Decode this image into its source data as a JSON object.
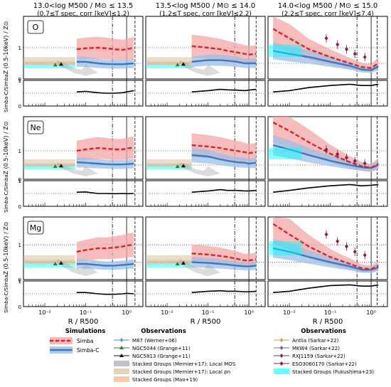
{
  "figure": {
    "columns": [
      {
        "title_line1": "13.0<log M500 / M⊙ ≤ 13.5",
        "title_line2": "(0.7≤T spec, corr [keV]≤1.2)"
      },
      {
        "title_line1": "13.5<log M500 / M⊙ ≤ 14.0",
        "title_line2": "(1.2≤T spec, corr [keV]≤2.2)"
      },
      {
        "title_line1": "14.0<log M500 / M⊙ ≤ 15.0",
        "title_line2": "(2.2≤T spec, corr [keV]≤7.4)"
      }
    ],
    "rows": [
      {
        "element": "O",
        "ylabel": "Z (0.5-10keV) / Z⊙"
      },
      {
        "element": "Ne",
        "ylabel": "Z (0.5-10keV) / Z⊙"
      },
      {
        "element": "Mg",
        "ylabel": "Z (0.5-10keV) / Z⊙"
      }
    ],
    "ratio_ylabel": "Simba-C/Simba",
    "xlabel": "R / R500",
    "x_ticklabels": [
      "10⁻²",
      "10⁻¹",
      "10⁰"
    ],
    "colors": {
      "simba": "#d62728",
      "simba_fill": "#f4a6a6",
      "simbac": "#3b78c2",
      "simbac_fill": "#9dbfe6",
      "mernier_mos": "#9a9a9a",
      "mernier_pn": "#d2b48c",
      "mao": "#f5a878",
      "fukushima": "#00ffff",
      "ratio": "#000000"
    }
  },
  "legend": {
    "simulations_title": "Simulations",
    "simulations": [
      {
        "label": "Simba",
        "color": "#d62728",
        "style": "dashed-band"
      },
      {
        "label": "Simba-C",
        "color": "#3b78c2",
        "style": "solid-band"
      }
    ],
    "obs_title_1": "Observations",
    "observations_1": [
      {
        "label": "M87 (Werner+06)",
        "color": "#4a8fc2",
        "marker": "diamond"
      },
      {
        "label": "NGC5044 (Grange+11)",
        "color": "#2e7d32",
        "marker": "triangle"
      },
      {
        "label": "NGC5813 (Grange+11)",
        "color": "#111111",
        "marker": "triangle"
      },
      {
        "label": "Stacked Groups (Mernier+17): Local MOS",
        "color": "#9a9a9a",
        "marker": "band"
      },
      {
        "label": "Stacked Groups (Mernier+17): Local pn",
        "color": "#d2b48c",
        "marker": "band"
      },
      {
        "label": "Stacked Groups (Mao+19)",
        "color": "#f5a878",
        "marker": "band"
      }
    ],
    "obs_title_2": "Observations",
    "observations_2": [
      {
        "label": "Antlia (Sarkar+22)",
        "color": "#c8a070",
        "marker": "diamond"
      },
      {
        "label": "MKW4 (Sarkar+22)",
        "color": "#7b5ea7",
        "marker": "diamond"
      },
      {
        "label": "RXJ1159 (Sarkar+22)",
        "color": "#6b3a3a",
        "marker": "diamond"
      },
      {
        "label": "ESO3060170 (Sarkar+22)",
        "color": "#8b1a4a",
        "marker": "diamond"
      },
      {
        "label": "Stacked Groups (Fukushima+23)",
        "color": "#00ffff",
        "marker": "band"
      }
    ]
  },
  "chart_data": [
    {
      "panel": "O, 13.0-13.5",
      "type": "line",
      "x": [
        0.06,
        0.1,
        0.2,
        0.3,
        0.5,
        0.8,
        1.0,
        1.5
      ],
      "series": [
        {
          "name": "Simba",
          "values": [
            0.95,
            0.98,
            1.0,
            0.98,
            0.95,
            0.93,
            0.95,
            1.0
          ]
        },
        {
          "name": "Simba-C",
          "values": [
            0.55,
            0.55,
            0.5,
            0.48,
            0.47,
            0.47,
            0.48,
            0.5
          ]
        }
      ],
      "ratio": [
        0.55,
        0.57,
        0.52,
        0.5,
        0.5,
        0.52,
        0.55,
        0.6
      ]
    },
    {
      "panel": "O, 13.5-14.0",
      "type": "line",
      "x": [
        0.04,
        0.1,
        0.2,
        0.3,
        0.5,
        0.8,
        1.0,
        1.5
      ],
      "series": [
        {
          "name": "Simba",
          "values": [
            1.05,
            1.0,
            0.95,
            0.9,
            0.85,
            0.8,
            0.78,
            0.8
          ]
        },
        {
          "name": "Simba-C",
          "values": [
            0.55,
            0.6,
            0.6,
            0.58,
            0.55,
            0.5,
            0.5,
            0.5
          ]
        }
      ],
      "ratio": [
        0.55,
        0.6,
        0.65,
        0.63,
        0.62,
        0.6,
        0.62,
        0.65
      ]
    },
    {
      "panel": "O, 14.0-15.0",
      "type": "line",
      "x": [
        0.004,
        0.01,
        0.03,
        0.1,
        0.3,
        0.6,
        1.0,
        1.5
      ],
      "series": [
        {
          "name": "Simba",
          "values": [
            1.6,
            1.3,
            0.95,
            0.7,
            0.5,
            0.38,
            0.35,
            0.5
          ]
        },
        {
          "name": "Simba-C",
          "values": [
            0.9,
            0.8,
            0.7,
            0.55,
            0.42,
            0.3,
            0.28,
            0.4
          ]
        }
      ],
      "ratio": [
        0.55,
        0.6,
        0.72,
        0.8,
        0.85,
        0.8,
        0.8,
        0.85
      ]
    },
    {
      "panel": "Ne, 13.0-13.5",
      "type": "line",
      "x": [
        0.06,
        0.1,
        0.2,
        0.3,
        0.5,
        0.8,
        1.0,
        1.5
      ],
      "series": [
        {
          "name": "Simba",
          "values": [
            1.0,
            1.05,
            1.1,
            1.08,
            1.05,
            1.05,
            1.08,
            1.12
          ]
        },
        {
          "name": "Simba-C",
          "values": [
            0.6,
            0.58,
            0.55,
            0.53,
            0.52,
            0.52,
            0.53,
            0.55
          ]
        }
      ],
      "ratio": [
        0.55,
        0.56,
        0.5,
        0.5,
        0.49,
        0.5,
        0.49,
        0.5
      ]
    },
    {
      "panel": "Ne, 13.5-14.0",
      "type": "line",
      "x": [
        0.04,
        0.1,
        0.2,
        0.3,
        0.5,
        0.8,
        1.0,
        1.5
      ],
      "series": [
        {
          "name": "Simba",
          "values": [
            1.2,
            1.15,
            1.1,
            1.05,
            1.0,
            0.95,
            0.92,
            0.95
          ]
        },
        {
          "name": "Simba-C",
          "values": [
            0.85,
            0.8,
            0.7,
            0.65,
            0.6,
            0.58,
            0.55,
            0.58
          ]
        }
      ],
      "ratio": [
        0.55,
        0.6,
        0.65,
        0.62,
        0.62,
        0.6,
        0.6,
        0.62
      ]
    },
    {
      "panel": "Ne, 14.0-15.0",
      "type": "line",
      "x": [
        0.004,
        0.01,
        0.03,
        0.1,
        0.3,
        0.6,
        1.0,
        1.5
      ],
      "series": [
        {
          "name": "Simba",
          "values": [
            2.0,
            1.7,
            1.3,
            0.9,
            0.6,
            0.45,
            0.4,
            0.55
          ]
        },
        {
          "name": "Simba-C",
          "values": [
            1.2,
            1.05,
            0.85,
            0.65,
            0.5,
            0.42,
            0.4,
            0.5
          ]
        }
      ],
      "ratio": [
        0.55,
        0.62,
        0.72,
        0.8,
        0.85,
        0.8,
        0.82,
        0.85
      ]
    },
    {
      "panel": "Mg, 13.0-13.5",
      "type": "line",
      "x": [
        0.06,
        0.1,
        0.2,
        0.3,
        0.5,
        0.8,
        1.0,
        1.5
      ],
      "series": [
        {
          "name": "Simba",
          "values": [
            0.8,
            0.85,
            0.9,
            0.9,
            0.92,
            0.95,
            0.98,
            1.0
          ]
        },
        {
          "name": "Simba-C",
          "values": [
            0.45,
            0.45,
            0.42,
            0.4,
            0.4,
            0.42,
            0.43,
            0.45
          ]
        }
      ],
      "ratio": [
        0.55,
        0.55,
        0.5,
        0.48,
        0.48,
        0.5,
        0.52,
        0.5
      ]
    },
    {
      "panel": "Mg, 13.5-14.0",
      "type": "line",
      "x": [
        0.04,
        0.1,
        0.2,
        0.3,
        0.5,
        0.8,
        1.0,
        1.5
      ],
      "series": [
        {
          "name": "Simba",
          "values": [
            0.75,
            0.72,
            0.68,
            0.65,
            0.6,
            0.55,
            0.55,
            0.58
          ]
        },
        {
          "name": "Simba-C",
          "values": [
            0.5,
            0.48,
            0.45,
            0.43,
            0.4,
            0.38,
            0.38,
            0.4
          ]
        }
      ],
      "ratio": [
        0.55,
        0.6,
        0.62,
        0.6,
        0.6,
        0.58,
        0.58,
        0.6
      ]
    },
    {
      "panel": "Mg, 14.0-15.0",
      "type": "line",
      "x": [
        0.004,
        0.01,
        0.03,
        0.1,
        0.3,
        0.6,
        1.0,
        1.5
      ],
      "series": [
        {
          "name": "Simba",
          "values": [
            1.6,
            1.3,
            0.95,
            0.65,
            0.45,
            0.32,
            0.3,
            0.4
          ]
        },
        {
          "name": "Simba-C",
          "values": [
            0.9,
            0.8,
            0.65,
            0.5,
            0.38,
            0.28,
            0.28,
            0.35
          ]
        }
      ],
      "ratio": [
        0.55,
        0.6,
        0.72,
        0.82,
        0.85,
        0.8,
        0.8,
        0.85
      ]
    }
  ]
}
